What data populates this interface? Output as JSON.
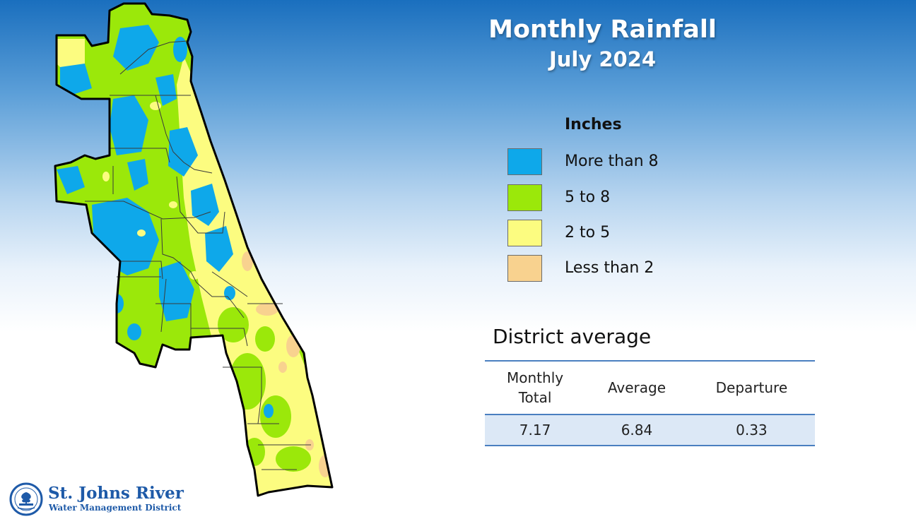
{
  "header": {
    "title": "Monthly Rainfall",
    "subtitle": "July 2024"
  },
  "legend": {
    "title": "Inches",
    "items": [
      {
        "label": "More than 8",
        "color": "#0ea8ea"
      },
      {
        "label": "5 to 8",
        "color": "#9be80a"
      },
      {
        "label": "2 to 5",
        "color": "#fcfc80"
      },
      {
        "label": "Less than 2",
        "color": "#f8d28f"
      }
    ]
  },
  "district_average": {
    "title": "District average",
    "columns": [
      "Monthly\nTotal",
      "Average",
      "Departure"
    ],
    "values": [
      "7.17",
      "6.84",
      "0.33"
    ]
  },
  "map": {
    "outline_color": "#000000",
    "county_line_color": "#3a3a3a"
  },
  "logo": {
    "line1": "St. Johns River",
    "line2": "Water Management District",
    "color": "#1e5aa8"
  }
}
